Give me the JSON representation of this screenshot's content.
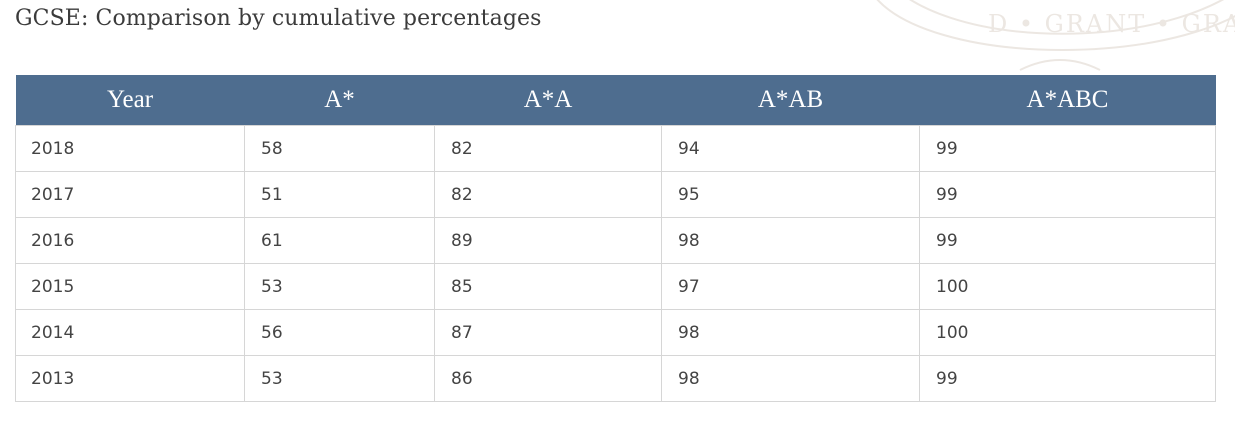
{
  "title": "GCSE: Comparison by cumulative percentages",
  "watermark": {
    "text": "D • GRANT • GRA"
  },
  "table": {
    "headers": [
      "Year",
      "A*",
      "A*A",
      "A*AB",
      "A*ABC"
    ],
    "rows": [
      [
        "2018",
        "58",
        "82",
        "94",
        "99"
      ],
      [
        "2017",
        "51",
        "82",
        "95",
        "99"
      ],
      [
        "2016",
        "61",
        "89",
        "98",
        "99"
      ],
      [
        "2015",
        "53",
        "85",
        "97",
        "100"
      ],
      [
        "2014",
        "56",
        "87",
        "98",
        "100"
      ],
      [
        "2013",
        "53",
        "86",
        "98",
        "99"
      ]
    ]
  },
  "colors": {
    "header_background": "#4e6d8f",
    "header_text": "#ffffff",
    "cell_border": "#d6d6d6",
    "title_text": "#3b3b3b"
  }
}
